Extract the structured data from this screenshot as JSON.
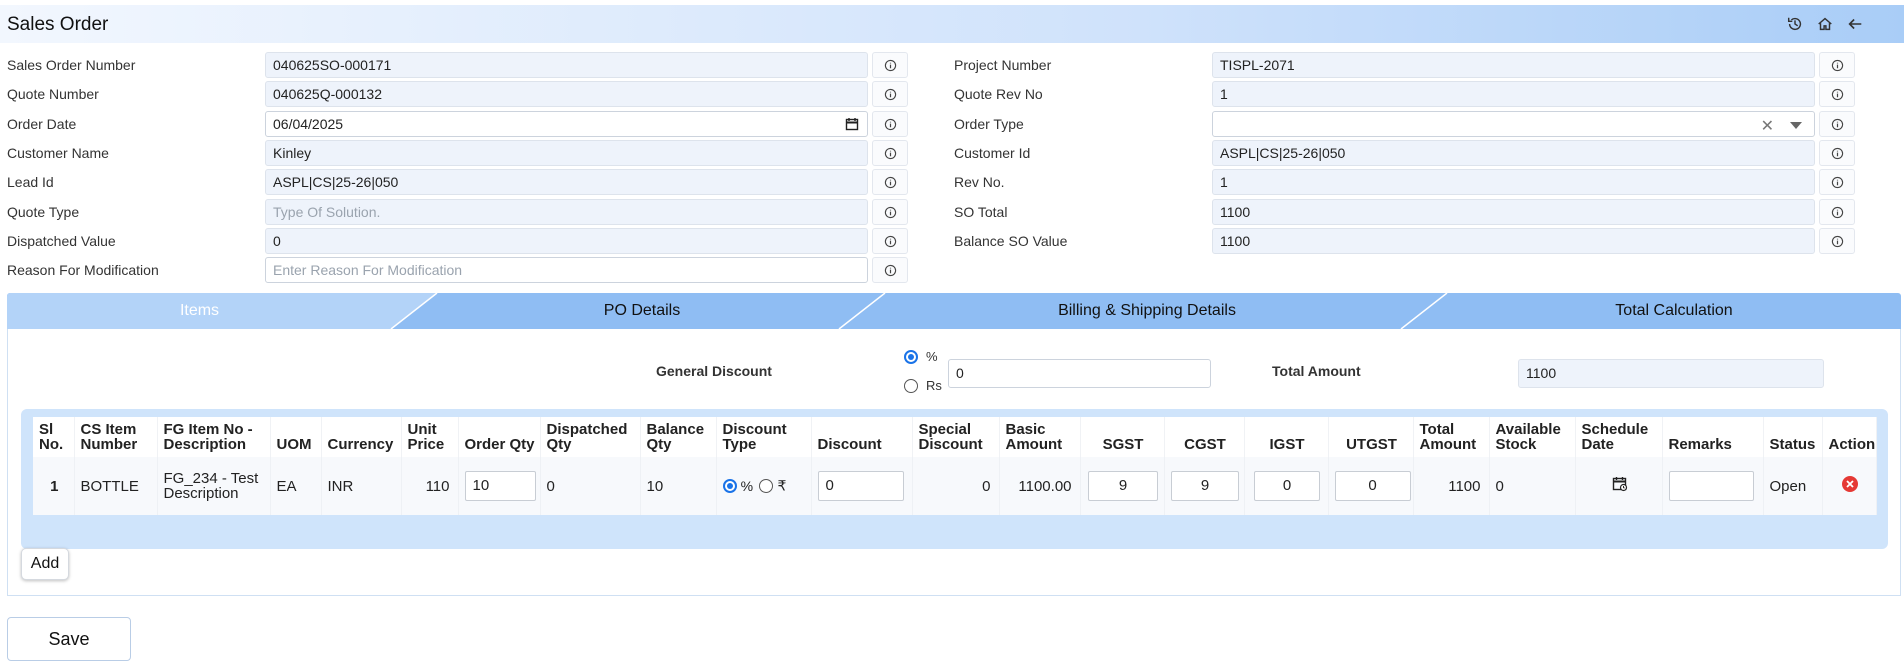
{
  "page": {
    "title": "Sales Order"
  },
  "form": {
    "left": [
      {
        "label": "Sales Order Number",
        "value": "040625SO-000171",
        "placeholder": ""
      },
      {
        "label": "Quote Number",
        "value": "040625Q-000132",
        "placeholder": ""
      },
      {
        "label": "Order Date",
        "value": "06/04/2025",
        "placeholder": ""
      },
      {
        "label": "Customer Name",
        "value": "Kinley",
        "placeholder": ""
      },
      {
        "label": "Lead Id",
        "value": "ASPL|CS|25-26|050",
        "placeholder": ""
      },
      {
        "label": "Quote Type",
        "value": "",
        "placeholder": "Type Of Solution."
      },
      {
        "label": "Dispatched Value",
        "value": "0",
        "placeholder": ""
      },
      {
        "label": "Reason For Modification",
        "value": "",
        "placeholder": "Enter Reason For Modification"
      }
    ],
    "right": [
      {
        "label": "Project Number",
        "value": "TISPL-2071"
      },
      {
        "label": "Quote Rev No",
        "value": "1"
      },
      {
        "label": "Order Type",
        "value": ""
      },
      {
        "label": "Customer Id",
        "value": "ASPL|CS|25-26|050"
      },
      {
        "label": "Rev No.",
        "value": "1"
      },
      {
        "label": "SO Total",
        "value": "1100"
      },
      {
        "label": "Balance SO Value",
        "value": "1100"
      }
    ]
  },
  "tabs": [
    {
      "label": "Items",
      "active": true
    },
    {
      "label": "PO Details",
      "active": false
    },
    {
      "label": "Billing & Shipping Details",
      "active": false
    },
    {
      "label": "Total Calculation",
      "active": false
    }
  ],
  "items_panel": {
    "general_discount_label": "General Discount",
    "discount_options": [
      "%",
      "Rs"
    ],
    "selected_discount_option": "%",
    "general_discount_value": "0",
    "total_amount_label": "Total Amount",
    "total_amount_value": "1100",
    "columns": [
      "Sl No.",
      "CS Item Number",
      "FG Item No - Description",
      "UOM",
      "Currency",
      "Unit Price",
      "Order Qty",
      "Dispatched Qty",
      "Balance Qty",
      "Discount Type",
      "Discount",
      "Special Discount",
      "Basic Amount",
      "SGST",
      "CGST",
      "IGST",
      "UTGST",
      "Total Amount",
      "Available Stock",
      "Schedule Date",
      "Remarks",
      "Status",
      "Action"
    ],
    "rows": [
      {
        "sl_no": "1",
        "cs_item_number": "BOTTLE",
        "fg_item": "FG_234 - Test Description",
        "uom": "EA",
        "currency": "INR",
        "unit_price": "110",
        "order_qty": "10",
        "dispatched_qty": "0",
        "balance_qty": "10",
        "discount_type_options": [
          "%",
          "₹"
        ],
        "discount": "0",
        "special_discount": "0",
        "basic_amount": "1100.00",
        "sgst": "9",
        "cgst": "9",
        "igst": "0",
        "utgst": "0",
        "total_amount": "1100",
        "available_stock": "0",
        "schedule_date": "",
        "remarks": "",
        "status": "Open"
      }
    ],
    "add_label": "Add"
  },
  "actions": {
    "save_label": "Save"
  },
  "icons": {
    "header": [
      "history-icon",
      "home-icon",
      "back-arrow-icon"
    ]
  },
  "colors": {
    "tab_bg": "#8fbdf3",
    "active_tab_bg": "#b3d3f8",
    "field_bg": "#eef3fb",
    "accent": "#1a73e8",
    "delete": "#e53935"
  }
}
